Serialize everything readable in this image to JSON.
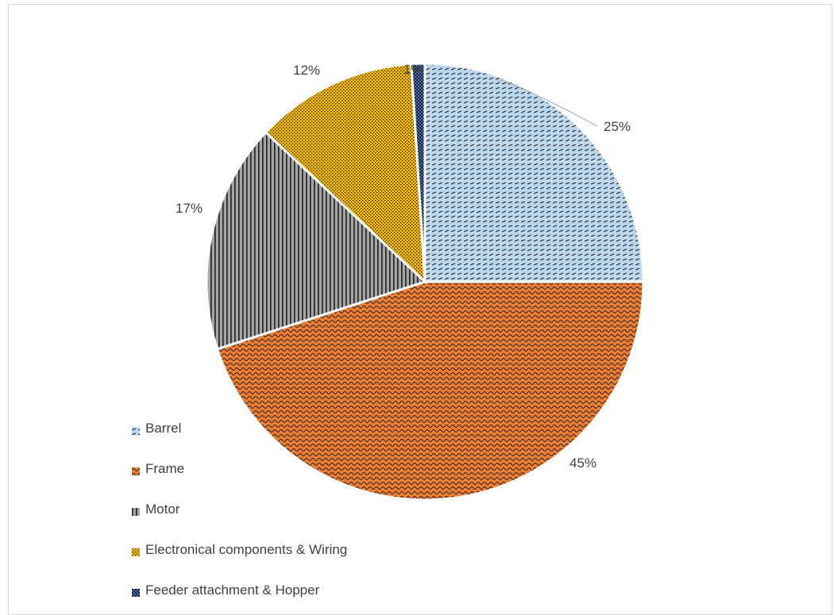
{
  "chart_data": {
    "type": "pie",
    "title": "",
    "slices": [
      {
        "label": "Barrel",
        "value": 25,
        "display": "25%",
        "color": "#bdd7ee",
        "pattern": "dashes"
      },
      {
        "label": "Frame",
        "value": 45,
        "display": "45%",
        "color": "#ed7d31",
        "pattern": "waves"
      },
      {
        "label": "Motor",
        "value": 17,
        "display": "17%",
        "color": "#a5a5a5",
        "pattern": "vertical-lines"
      },
      {
        "label": "Electronical components & Wiring",
        "value": 12,
        "display": "12%",
        "color": "#ffc000",
        "pattern": "dots"
      },
      {
        "label": "Feeder attachment & Hopper",
        "value": 1,
        "display": "1%",
        "color": "#4472c4",
        "pattern": "checker"
      }
    ],
    "legend_position": "bottom-left",
    "start_angle_deg": 0,
    "direction": "clockwise"
  }
}
